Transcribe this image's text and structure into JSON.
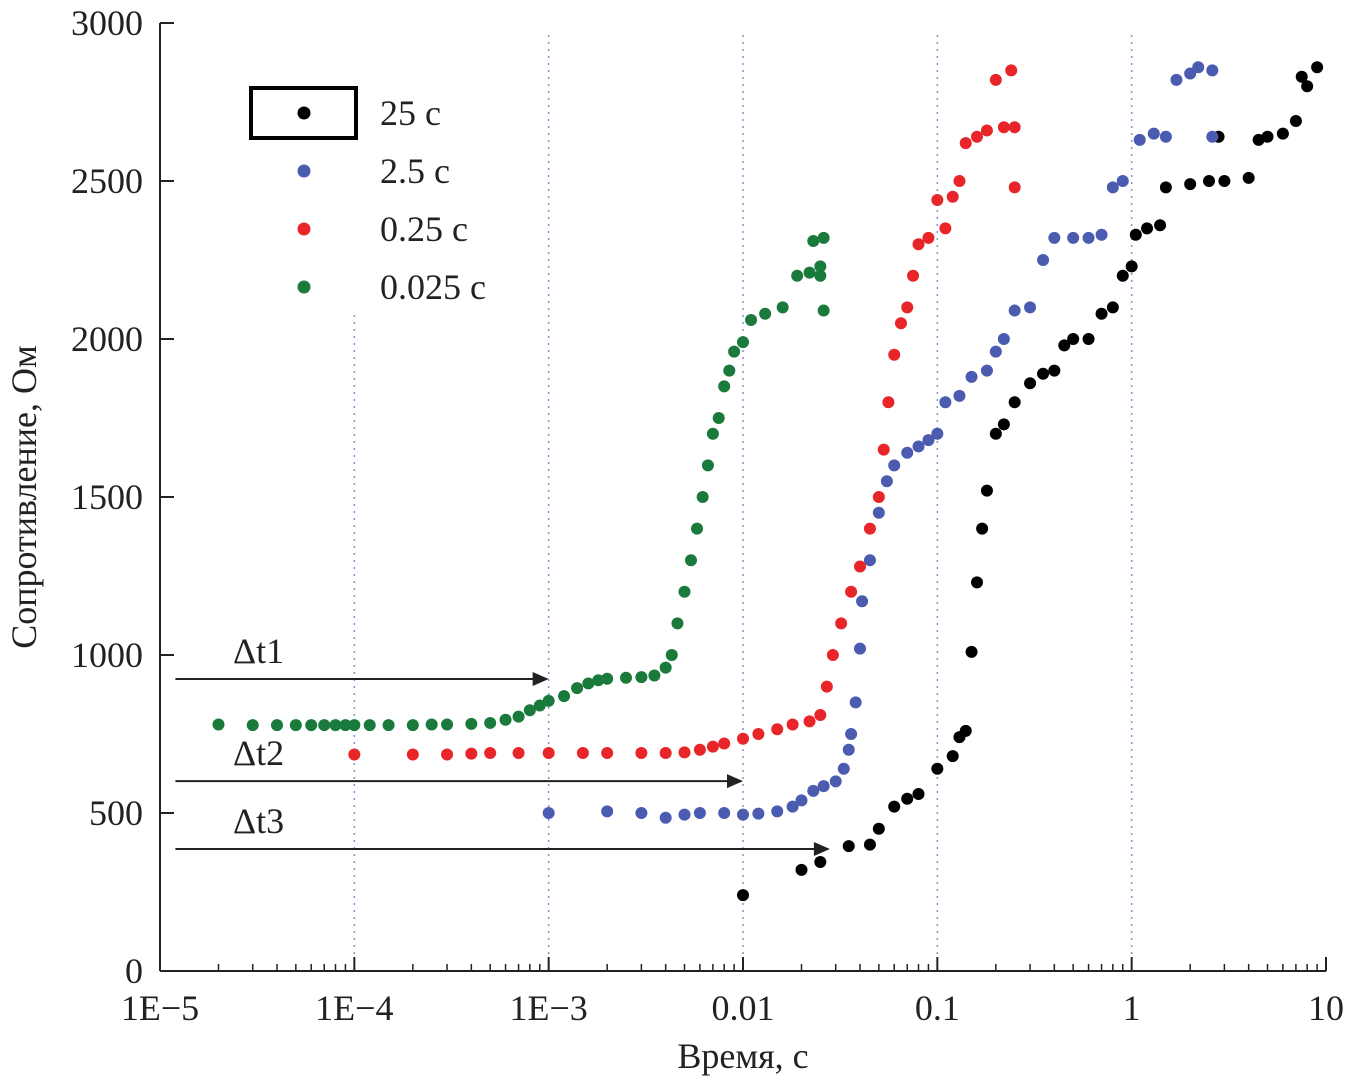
{
  "chart_data": {
    "type": "scatter",
    "xlabel": "Время, с",
    "ylabel": "Сопротивление, Ом",
    "xscale": "log",
    "xlim": [
      1e-05,
      10
    ],
    "ylim": [
      0,
      3000
    ],
    "xticks": [
      1e-05,
      0.0001,
      0.001,
      0.01,
      0.1,
      1,
      10
    ],
    "xtick_labels": [
      "1E−5",
      "1E−4",
      "1E−3",
      "0.01",
      "0.1",
      "1",
      "10"
    ],
    "yticks": [
      0,
      500,
      1000,
      1500,
      2000,
      2500,
      3000
    ],
    "ytick_labels": [
      "0",
      "500",
      "1000",
      "1500",
      "2000",
      "2500",
      "3000"
    ],
    "grid": "vertical dotted lines at decades",
    "legend_placement": "top-left",
    "series": [
      {
        "name": "25 с",
        "color": "#000000",
        "points": [
          [
            0.01,
            240
          ],
          [
            0.02,
            320
          ],
          [
            0.025,
            345
          ],
          [
            0.035,
            395
          ],
          [
            0.045,
            400
          ],
          [
            0.05,
            450
          ],
          [
            0.06,
            520
          ],
          [
            0.07,
            545
          ],
          [
            0.08,
            560
          ],
          [
            0.1,
            640
          ],
          [
            0.12,
            680
          ],
          [
            0.13,
            740
          ],
          [
            0.14,
            760
          ],
          [
            0.15,
            1010
          ],
          [
            0.16,
            1230
          ],
          [
            0.17,
            1400
          ],
          [
            0.18,
            1520
          ],
          [
            0.2,
            1700
          ],
          [
            0.22,
            1730
          ],
          [
            0.25,
            1800
          ],
          [
            0.3,
            1860
          ],
          [
            0.35,
            1890
          ],
          [
            0.4,
            1900
          ],
          [
            0.45,
            1980
          ],
          [
            0.5,
            2000
          ],
          [
            0.6,
            2000
          ],
          [
            0.7,
            2080
          ],
          [
            0.8,
            2100
          ],
          [
            0.9,
            2200
          ],
          [
            1,
            2230
          ],
          [
            1.05,
            2330
          ],
          [
            1.2,
            2350
          ],
          [
            1.4,
            2360
          ],
          [
            1.5,
            2480
          ],
          [
            2,
            2490
          ],
          [
            2.5,
            2500
          ],
          [
            2.8,
            2640
          ],
          [
            3,
            2500
          ],
          [
            4,
            2510
          ],
          [
            4.5,
            2630
          ],
          [
            5,
            2640
          ],
          [
            6,
            2650
          ],
          [
            7,
            2690
          ],
          [
            7.5,
            2830
          ],
          [
            8,
            2800
          ],
          [
            9,
            2860
          ]
        ]
      },
      {
        "name": "2.5 с",
        "color": "#4a5bb0",
        "points": [
          [
            0.001,
            500
          ],
          [
            0.002,
            505
          ],
          [
            0.003,
            500
          ],
          [
            0.004,
            485
          ],
          [
            0.005,
            495
          ],
          [
            0.006,
            500
          ],
          [
            0.008,
            500
          ],
          [
            0.01,
            495
          ],
          [
            0.012,
            498
          ],
          [
            0.015,
            505
          ],
          [
            0.018,
            520
          ],
          [
            0.02,
            540
          ],
          [
            0.023,
            570
          ],
          [
            0.026,
            585
          ],
          [
            0.03,
            600
          ],
          [
            0.033,
            640
          ],
          [
            0.035,
            700
          ],
          [
            0.036,
            750
          ],
          [
            0.038,
            850
          ],
          [
            0.04,
            1020
          ],
          [
            0.041,
            1170
          ],
          [
            0.045,
            1300
          ],
          [
            0.05,
            1450
          ],
          [
            0.055,
            1550
          ],
          [
            0.06,
            1600
          ],
          [
            0.07,
            1640
          ],
          [
            0.08,
            1660
          ],
          [
            0.09,
            1680
          ],
          [
            0.1,
            1700
          ],
          [
            0.11,
            1800
          ],
          [
            0.13,
            1820
          ],
          [
            0.15,
            1880
          ],
          [
            0.18,
            1900
          ],
          [
            0.2,
            1960
          ],
          [
            0.22,
            2000
          ],
          [
            0.25,
            2090
          ],
          [
            0.3,
            2100
          ],
          [
            0.35,
            2250
          ],
          [
            0.4,
            2320
          ],
          [
            0.5,
            2320
          ],
          [
            0.6,
            2320
          ],
          [
            0.7,
            2330
          ],
          [
            0.8,
            2480
          ],
          [
            0.9,
            2500
          ],
          [
            1.1,
            2630
          ],
          [
            1.3,
            2650
          ],
          [
            1.5,
            2640
          ],
          [
            1.7,
            2820
          ],
          [
            2,
            2840
          ],
          [
            2.2,
            2860
          ],
          [
            2.6,
            2850
          ],
          [
            2.6,
            2640
          ]
        ]
      },
      {
        "name": "0.25 с",
        "color": "#e8262a",
        "points": [
          [
            0.0001,
            685
          ],
          [
            0.0002,
            685
          ],
          [
            0.0003,
            685
          ],
          [
            0.0004,
            688
          ],
          [
            0.0005,
            690
          ],
          [
            0.0007,
            690
          ],
          [
            0.001,
            690
          ],
          [
            0.0015,
            690
          ],
          [
            0.002,
            690
          ],
          [
            0.003,
            690
          ],
          [
            0.004,
            690
          ],
          [
            0.005,
            692
          ],
          [
            0.006,
            700
          ],
          [
            0.007,
            710
          ],
          [
            0.008,
            720
          ],
          [
            0.01,
            735
          ],
          [
            0.012,
            750
          ],
          [
            0.015,
            765
          ],
          [
            0.018,
            780
          ],
          [
            0.022,
            790
          ],
          [
            0.025,
            810
          ],
          [
            0.027,
            900
          ],
          [
            0.029,
            1000
          ],
          [
            0.032,
            1100
          ],
          [
            0.036,
            1200
          ],
          [
            0.04,
            1280
          ],
          [
            0.045,
            1400
          ],
          [
            0.05,
            1500
          ],
          [
            0.053,
            1650
          ],
          [
            0.056,
            1800
          ],
          [
            0.06,
            1950
          ],
          [
            0.065,
            2050
          ],
          [
            0.07,
            2100
          ],
          [
            0.075,
            2200
          ],
          [
            0.08,
            2300
          ],
          [
            0.09,
            2320
          ],
          [
            0.1,
            2440
          ],
          [
            0.11,
            2350
          ],
          [
            0.12,
            2450
          ],
          [
            0.13,
            2500
          ],
          [
            0.14,
            2620
          ],
          [
            0.16,
            2640
          ],
          [
            0.18,
            2660
          ],
          [
            0.2,
            2820
          ],
          [
            0.22,
            2670
          ],
          [
            0.24,
            2850
          ],
          [
            0.25,
            2480
          ],
          [
            0.25,
            2670
          ]
        ]
      },
      {
        "name": "0.025 с",
        "color": "#1a7a3c",
        "points": [
          [
            2e-05,
            780
          ],
          [
            3e-05,
            778
          ],
          [
            4e-05,
            778
          ],
          [
            5e-05,
            778
          ],
          [
            6e-05,
            778
          ],
          [
            7e-05,
            778
          ],
          [
            8e-05,
            778
          ],
          [
            9e-05,
            778
          ],
          [
            0.0001,
            778
          ],
          [
            0.00012,
            778
          ],
          [
            0.00015,
            778
          ],
          [
            0.0002,
            778
          ],
          [
            0.00025,
            780
          ],
          [
            0.0003,
            780
          ],
          [
            0.0004,
            782
          ],
          [
            0.0005,
            785
          ],
          [
            0.0006,
            795
          ],
          [
            0.0007,
            805
          ],
          [
            0.0008,
            825
          ],
          [
            0.0009,
            840
          ],
          [
            0.001,
            855
          ],
          [
            0.0012,
            870
          ],
          [
            0.0014,
            895
          ],
          [
            0.0016,
            910
          ],
          [
            0.0018,
            920
          ],
          [
            0.002,
            925
          ],
          [
            0.0025,
            928
          ],
          [
            0.003,
            930
          ],
          [
            0.0035,
            935
          ],
          [
            0.004,
            960
          ],
          [
            0.0043,
            1000
          ],
          [
            0.0046,
            1100
          ],
          [
            0.005,
            1200
          ],
          [
            0.0054,
            1300
          ],
          [
            0.0058,
            1400
          ],
          [
            0.0062,
            1500
          ],
          [
            0.0066,
            1600
          ],
          [
            0.007,
            1700
          ],
          [
            0.0075,
            1750
          ],
          [
            0.008,
            1850
          ],
          [
            0.0085,
            1900
          ],
          [
            0.009,
            1960
          ],
          [
            0.01,
            1990
          ],
          [
            0.011,
            2060
          ],
          [
            0.013,
            2080
          ],
          [
            0.016,
            2100
          ],
          [
            0.019,
            2200
          ],
          [
            0.022,
            2210
          ],
          [
            0.025,
            2230
          ],
          [
            0.026,
            2320
          ],
          [
            0.023,
            2310
          ],
          [
            0.026,
            2090
          ],
          [
            0.025,
            2200
          ]
        ]
      }
    ],
    "annotations": [
      {
        "label": "Δt1",
        "from": [
          1.2e-05,
          924
        ],
        "to": [
          0.001,
          924
        ]
      },
      {
        "label": "Δt2",
        "from": [
          1.2e-05,
          601
        ],
        "to": [
          0.01,
          601
        ]
      },
      {
        "label": "Δt3",
        "from": [
          1.2e-05,
          386
        ],
        "to": [
          0.028,
          386
        ]
      }
    ]
  }
}
